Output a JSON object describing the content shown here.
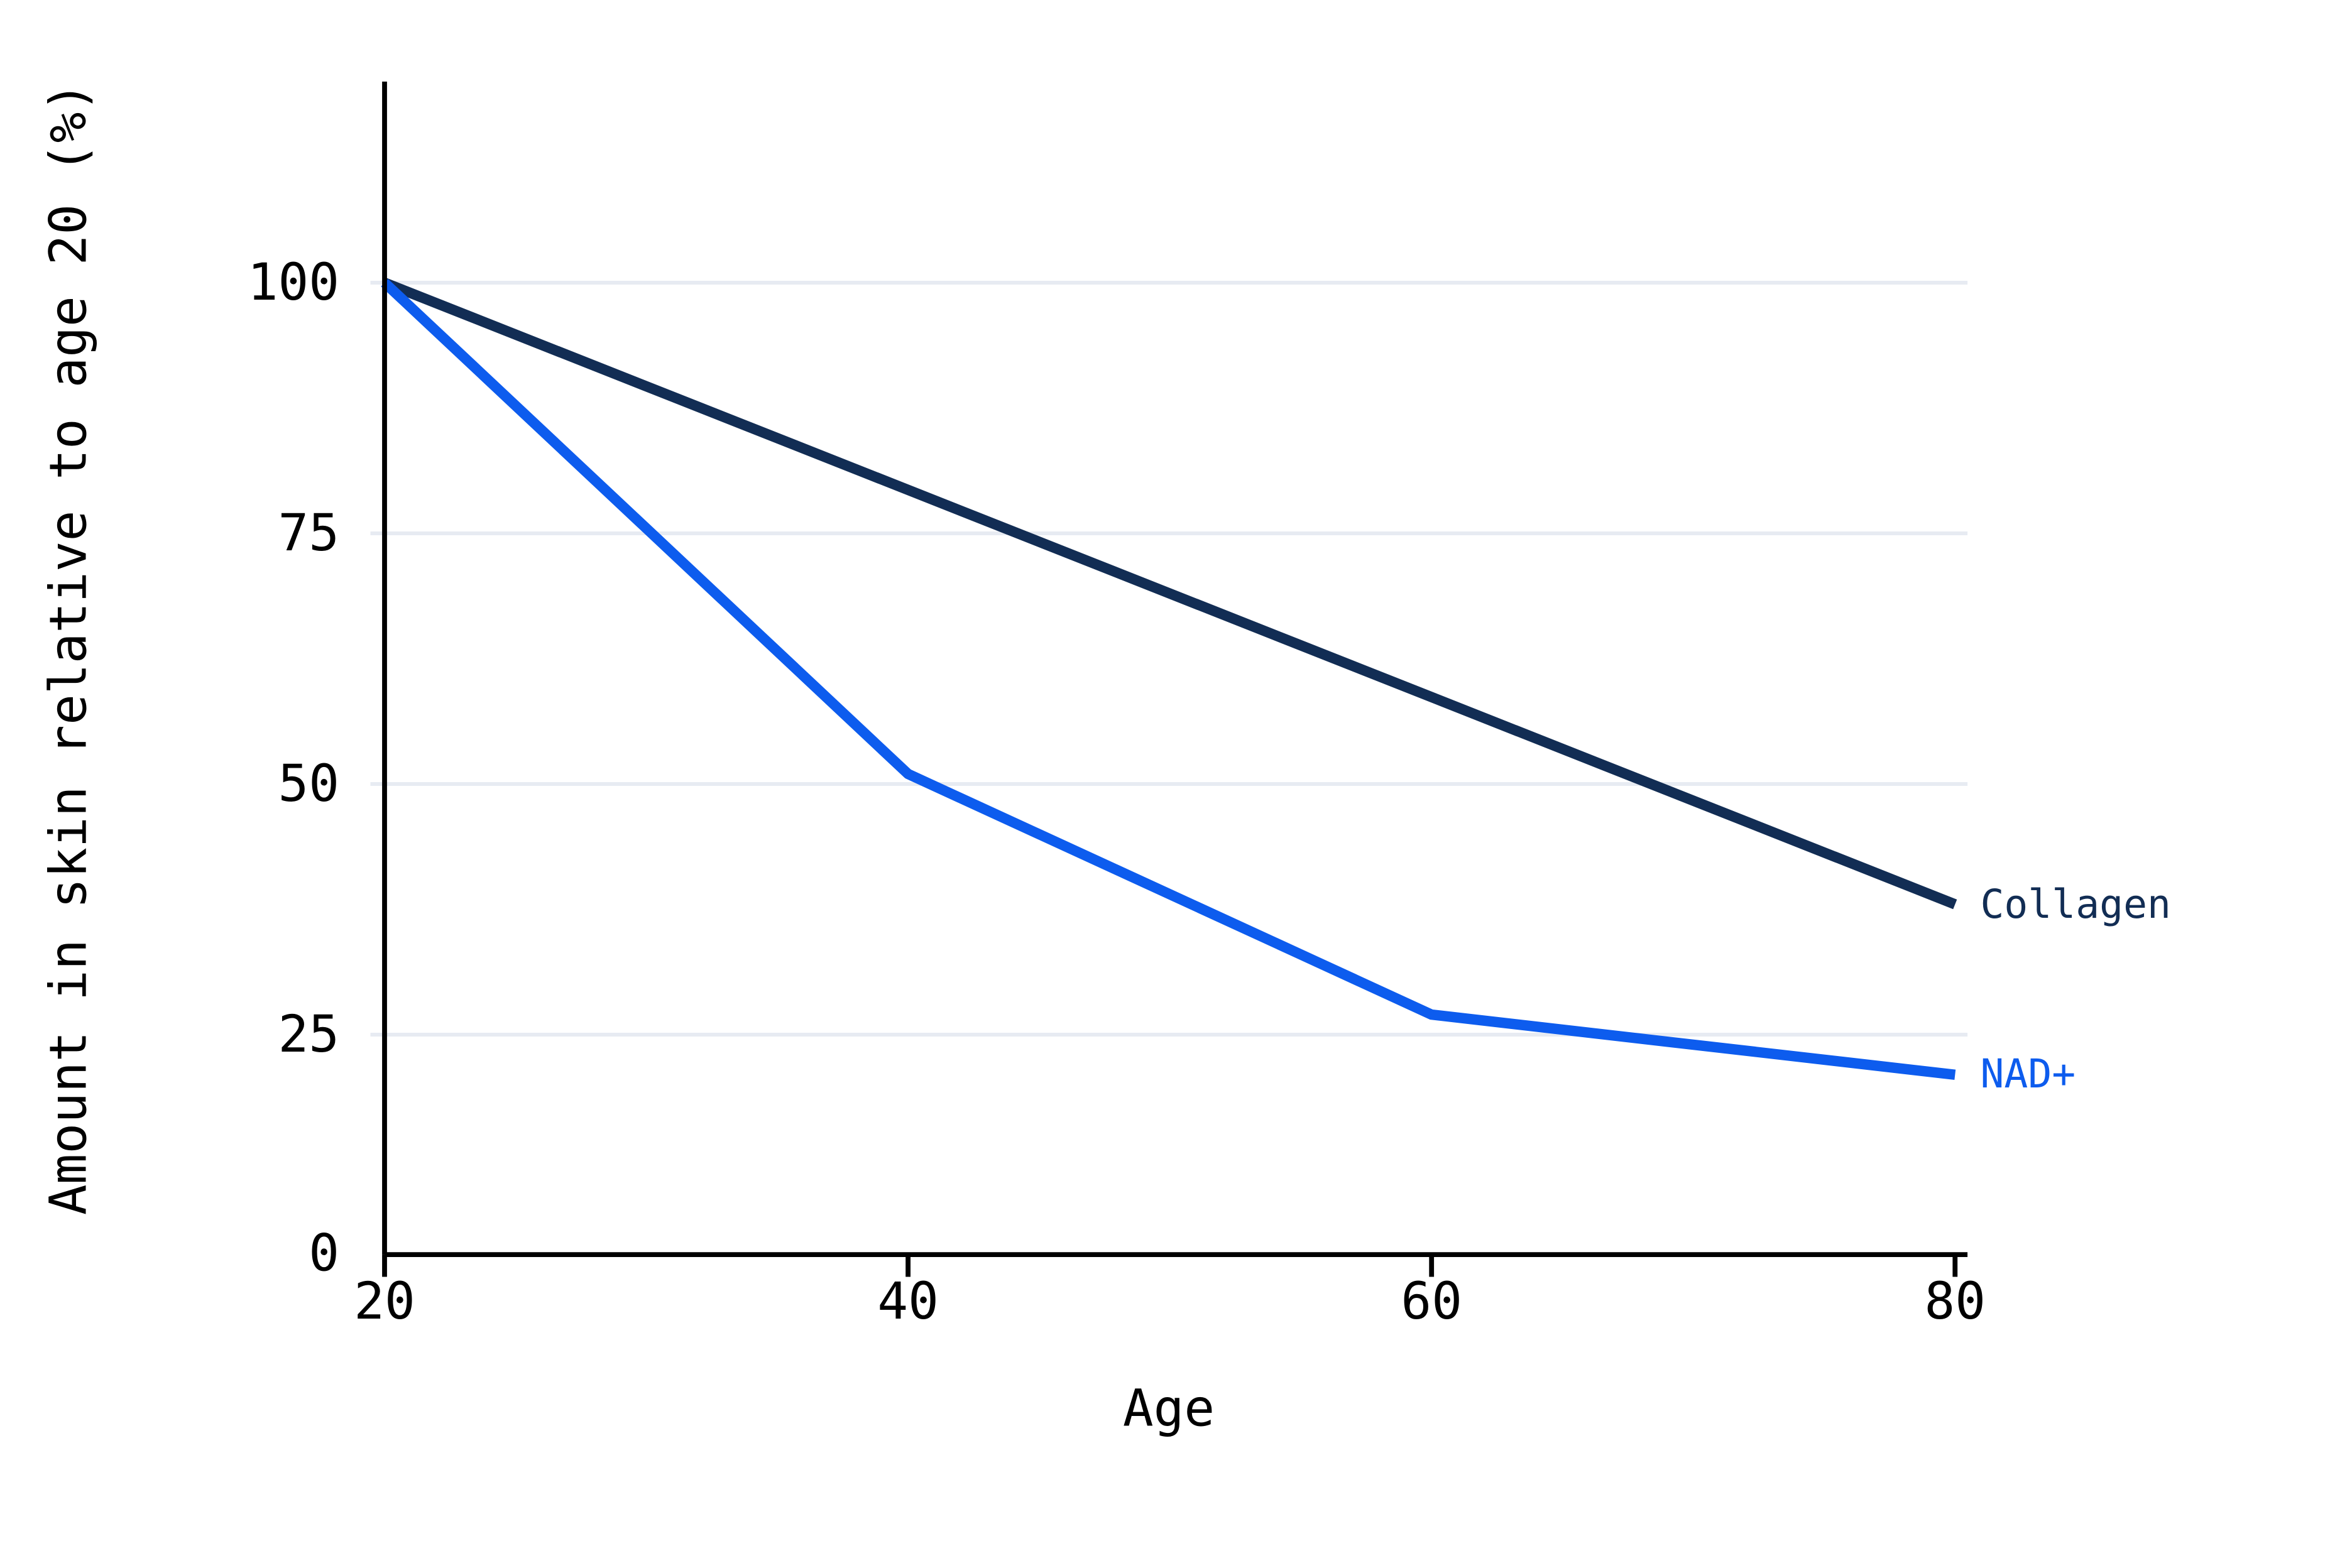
{
  "page": {
    "background": "#ffffff"
  },
  "chart_data": {
    "type": "line",
    "title": "",
    "xlabel": "Age",
    "ylabel": "Amount in skin relative to age 20 (%)",
    "x_axis": {
      "range": [
        20,
        80
      ],
      "ticks": [
        20,
        40,
        60,
        80
      ]
    },
    "y_axis": {
      "range": [
        0,
        100
      ],
      "ticks": [
        100,
        75,
        50,
        25,
        0
      ],
      "gridline_ticks": [
        100,
        75,
        50,
        25
      ]
    },
    "grid": "horizontal",
    "legend_position": "right-of-line-ends",
    "series": [
      {
        "name": "Collagen",
        "color": "#122d54",
        "x": [
          20,
          80
        ],
        "values": [
          100,
          38
        ]
      },
      {
        "name": "NAD+",
        "color": "#0d5cee",
        "x": [
          20,
          40,
          60,
          80
        ],
        "values": [
          100,
          51,
          27,
          21
        ]
      }
    ],
    "colors": {
      "axis": "#000000",
      "gridline": "#e7ebf2",
      "tick_labels": "#000000",
      "background": "#ffffff"
    }
  }
}
